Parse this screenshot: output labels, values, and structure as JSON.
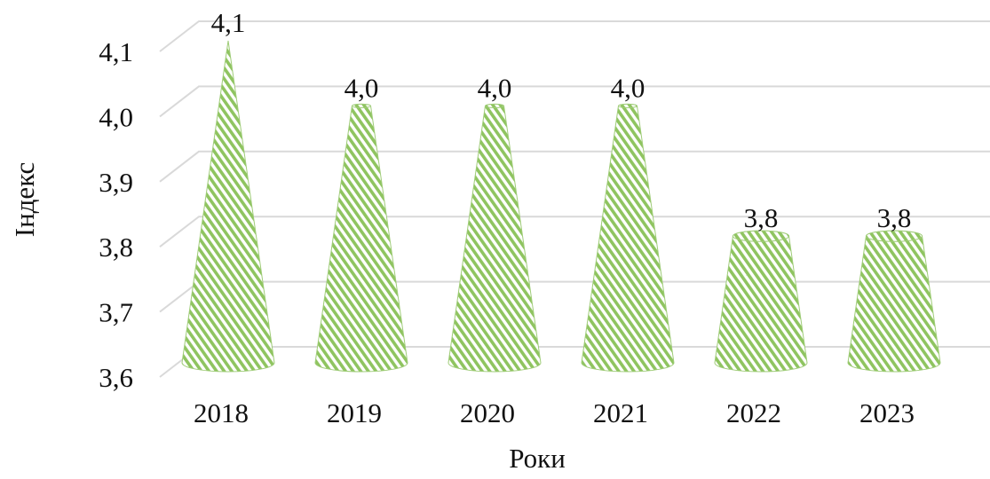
{
  "chart_data": {
    "type": "bar",
    "bar_shape": "3d-cone",
    "xlabel": "Роки",
    "ylabel": "Індекс",
    "categories": [
      "2018",
      "2019",
      "2020",
      "2021",
      "2022",
      "2023"
    ],
    "values": [
      4.1,
      4.0,
      4.0,
      4.0,
      3.8,
      3.8
    ],
    "data_labels": [
      "4,1",
      "4,0",
      "4,0",
      "4,0",
      "3,8",
      "3,8"
    ],
    "ylim": [
      3.6,
      4.1
    ],
    "yticks": [
      "3,6",
      "3,7",
      "3,8",
      "3,9",
      "4,0",
      "4,1"
    ],
    "grid": true,
    "legend": "none",
    "bar_color": "#8fc460",
    "bar_stripe_color": "#ffffff",
    "grid_color": "#d9d9d9"
  }
}
